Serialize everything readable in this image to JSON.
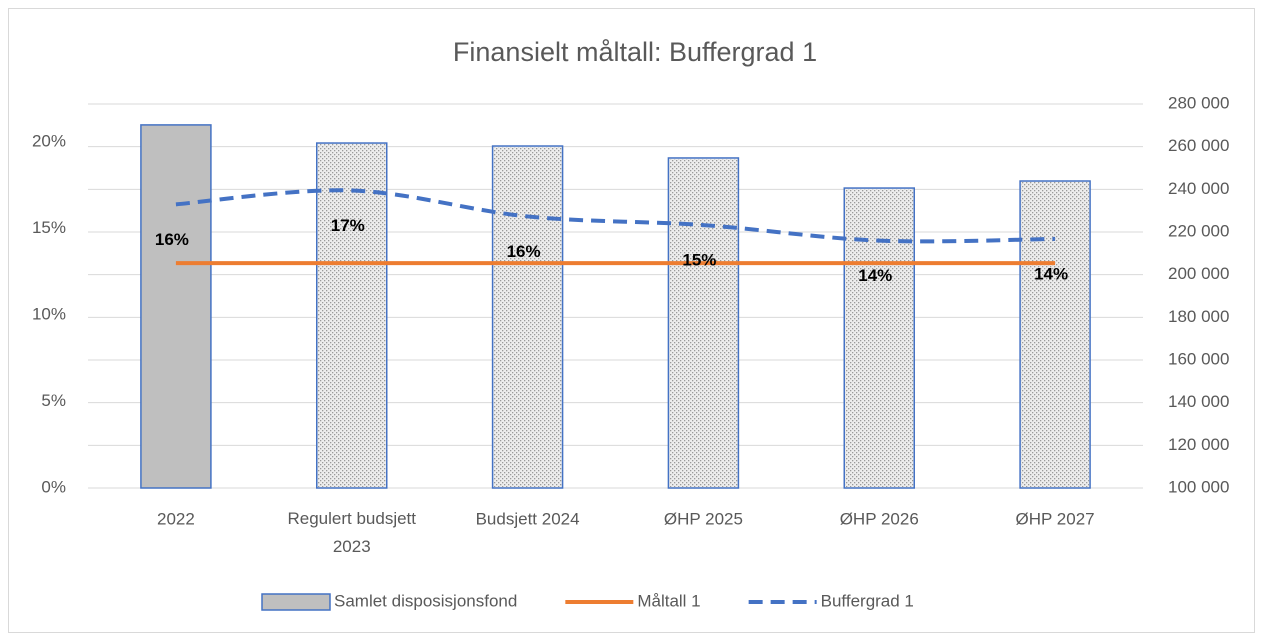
{
  "chart_data": {
    "type": "bar_line_combo",
    "title": "Finansielt måltall: Buffergrad 1",
    "categories": [
      "2022",
      "Regulert budsjett 2023",
      "Budsjett 2024",
      "ØHP 2025",
      "ØHP 2026",
      "ØHP 2027"
    ],
    "series": [
      {
        "name": "Samlet disposisjonsfond",
        "type": "bar",
        "axis": "y2",
        "color": "#4472c4",
        "fill_colors": [
          "#bfbfbf",
          "#ededed",
          "#ededed",
          "#ededed",
          "#ededed",
          "#ededed"
        ],
        "pattern": [
          false,
          true,
          true,
          true,
          true,
          true
        ],
        "values": [
          270200,
          261700,
          260300,
          254700,
          240600,
          243900
        ]
      },
      {
        "name": "Måltall 1",
        "type": "line",
        "color": "#ed7d31",
        "dashed": false,
        "values": [
          13,
          13,
          13,
          13,
          13,
          13
        ]
      },
      {
        "name": "Buffergrad 1",
        "type": "line",
        "color": "#4472c4",
        "dashed": true,
        "smooth": true,
        "values": [
          16.4,
          17.2,
          15.7,
          15.2,
          14.3,
          14.4
        ],
        "value_labels": [
          "16%",
          "17%",
          "16%",
          "15%",
          "14%",
          "14%"
        ]
      }
    ],
    "ylim": [
      0,
      22.2
    ],
    "yticks": [
      {
        "value": 0,
        "label": "0%"
      },
      {
        "value": 5,
        "label": "5%"
      },
      {
        "value": 10,
        "label": "10%"
      },
      {
        "value": 15,
        "label": "15%"
      },
      {
        "value": 20,
        "label": "20%"
      }
    ],
    "y2lim": [
      100000,
      280000
    ],
    "y2ticks": [
      {
        "value": 100000,
        "label": "100 000"
      },
      {
        "value": 120000,
        "label": "120 000"
      },
      {
        "value": 140000,
        "label": "140 000"
      },
      {
        "value": 160000,
        "label": "160 000"
      },
      {
        "value": 180000,
        "label": "180 000"
      },
      {
        "value": 200000,
        "label": "200 000"
      },
      {
        "value": 220000,
        "label": "220 000"
      },
      {
        "value": 240000,
        "label": "240 000"
      },
      {
        "value": 260000,
        "label": "260 000"
      },
      {
        "value": 280000,
        "label": "280 000"
      }
    ],
    "grid": true,
    "legend": "bottom"
  }
}
